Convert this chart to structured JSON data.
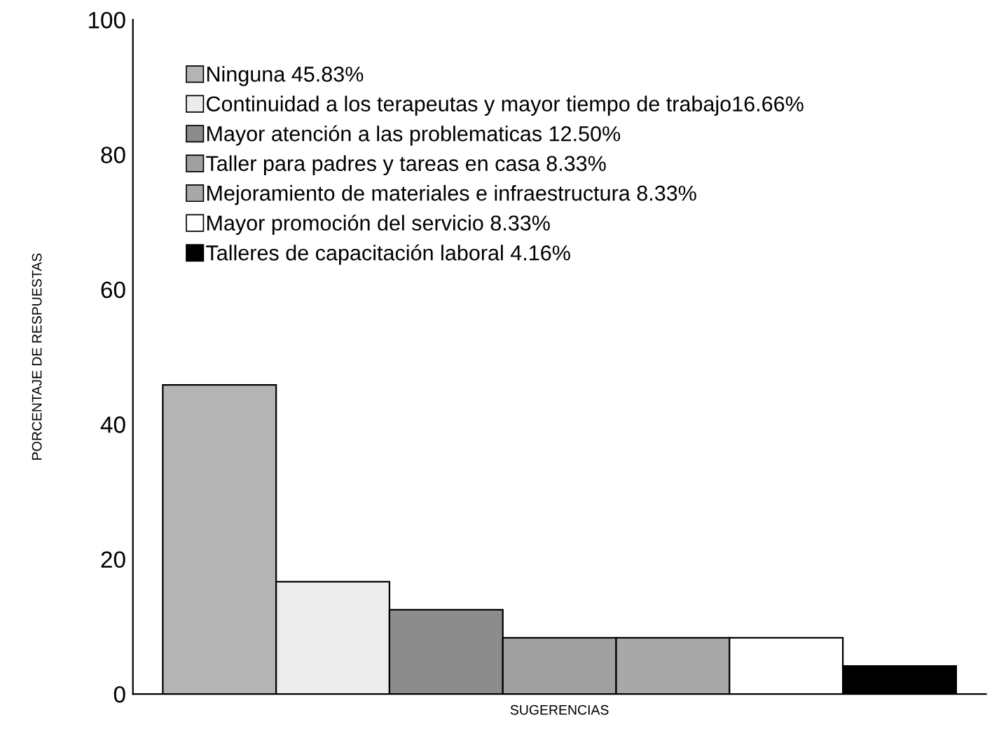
{
  "chart_data": {
    "type": "bar",
    "xlabel": "SUGERENCIAS",
    "ylabel": "PORCENTAJE DE RESPUESTAS",
    "categories": [
      null
    ],
    "series": [
      {
        "name": "Ninguna 45.83%",
        "color": "#b4b4b4",
        "values": [
          45.83
        ]
      },
      {
        "name": "Continuidad a los terapeutas y mayor tiempo de trabajo16.66%",
        "color": "#ececec",
        "values": [
          16.66
        ]
      },
      {
        "name": "Mayor atención a las problematicas 12.50%",
        "color": "#8c8c8c",
        "values": [
          12.5
        ]
      },
      {
        "name": "Taller para padres y tareas en casa 8.33%",
        "color": "#a0a0a0",
        "values": [
          8.33
        ]
      },
      {
        "name": "Mejoramiento de materiales e infraestructura 8.33%",
        "color": "#a8a8a8",
        "values": [
          8.33
        ]
      },
      {
        "name": "Mayor promoción del servicio 8.33%",
        "color": "#ffffff",
        "values": [
          8.33
        ]
      },
      {
        "name": "Talleres de capacitación laboral 4.16%",
        "color": "#000000",
        "values": [
          4.16
        ]
      }
    ],
    "ylim": [
      0,
      100
    ],
    "yticks": [
      0,
      20,
      40,
      60,
      80,
      100
    ],
    "grid": false,
    "legend": "top left"
  }
}
